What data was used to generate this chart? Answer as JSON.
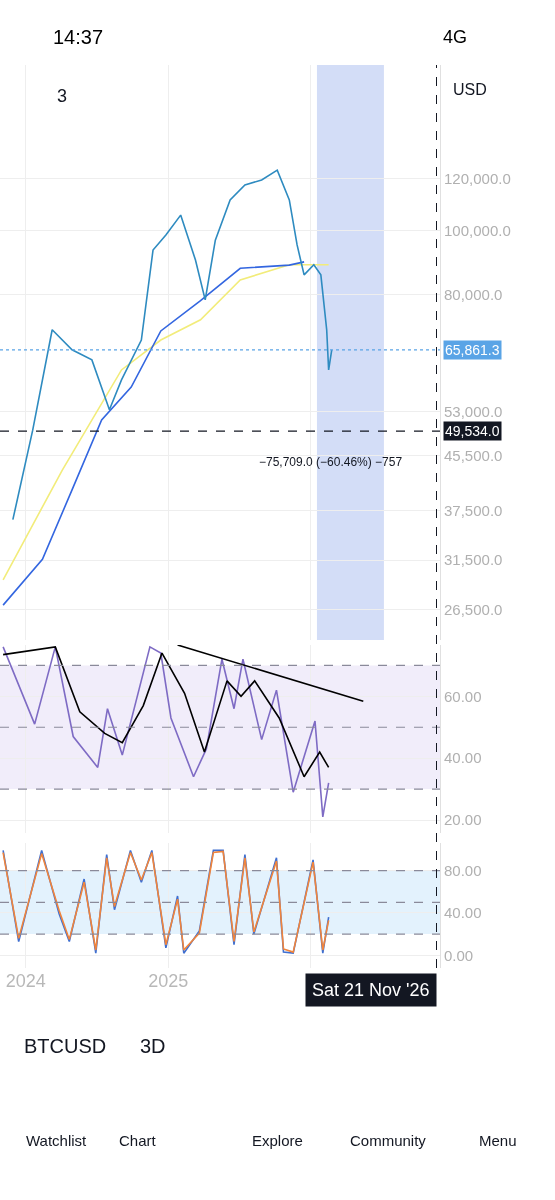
{
  "chart_data": [
    {
      "type": "line",
      "log": "y",
      "grid": true,
      "marker": "none",
      "tick_labels": "y",
      "xlim": [
        "2023-10-27",
        "2026-11-30"
      ],
      "xticks": [
        {
          "value": "2024-01-01",
          "label": null
        },
        {
          "value": "2025-01-01",
          "label": null
        },
        {
          "value": "2026-01-01",
          "label": null
        }
      ],
      "ylim": [
        23800,
        179000
      ],
      "yticks": [
        {
          "value": 26500,
          "label": "26,500.0"
        },
        {
          "value": 31500,
          "label": "31,500.0"
        },
        {
          "value": 37500,
          "label": "37,500.0"
        },
        {
          "value": 45500,
          "label": "45,500.0"
        },
        {
          "value": 53000,
          "label": "53,000.0"
        },
        {
          "value": 80000,
          "label": "80,000.0"
        },
        {
          "value": 100000,
          "label": "100,000.0"
        },
        {
          "value": 120000,
          "label": "120,000.0"
        }
      ],
      "series": [
        {
          "color": "#f2ec7a",
          "x": [
            "2023-11-04",
            "2024-04-04",
            "2024-09-03",
            "2024-12-13",
            "2025-03-25",
            "2025-07-05",
            "2025-11-08",
            "2026-02-17"
          ],
          "values": [
            29400,
            43200,
            61400,
            68200,
            73200,
            84200,
            88800,
            88800
          ]
        },
        {
          "color": "#3366e0",
          "x": [
            "2023-11-04",
            "2024-02-13",
            "2024-04-29",
            "2024-07-14",
            "2024-09-28",
            "2024-12-13",
            "2025-03-25",
            "2025-07-05",
            "2025-11-08",
            "2025-12-16"
          ],
          "values": [
            26900,
            31600,
            40300,
            51500,
            57800,
            70400,
            78300,
            87700,
            88700,
            89700
          ]
        },
        {
          "color": "#2e8bc0",
          "x": [
            "2023-11-29",
            "2024-01-19",
            "2024-03-09",
            "2024-04-29",
            "2024-06-19",
            "2024-08-03",
            "2024-09-03",
            "2024-10-24",
            "2024-11-23",
            "2024-12-26",
            "2025-02-02",
            "2025-03-12",
            "2025-04-06",
            "2025-05-02",
            "2025-06-09",
            "2025-07-17",
            "2025-08-29",
            "2025-10-08",
            "2025-11-08",
            "2025-11-28",
            "2025-12-16",
            "2026-01-10",
            "2026-01-28",
            "2026-02-12",
            "2026-02-17",
            "2026-02-25"
          ],
          "values": [
            36300,
            49700,
            70700,
            65900,
            63600,
            53400,
            59300,
            68200,
            93500,
            98600,
            105700,
            90300,
            78500,
            96800,
            111500,
            117500,
            119600,
            123800,
            111500,
            95200,
            85700,
            88800,
            85700,
            70700,
            61400,
            65861.3
          ]
        }
      ],
      "ref_lines": [
        {
          "axis": "y",
          "value": 65861.3,
          "label": "65,861.3",
          "color": "#5aa4e6",
          "line_style": "dotted"
        },
        {
          "axis": "y",
          "value": 49534,
          "label": "49,534.0",
          "color": "#131722",
          "line_style": "dashed"
        }
      ],
      "bands": [
        {
          "axis": "x",
          "from": "2026-01-18",
          "to": "2026-07-09",
          "color": "#d3ddf7"
        }
      ],
      "annotations": [
        "−75,709.0 (−60.46%) −757",
        "14:37",
        "4G",
        "3",
        "USD",
        "BTCUSD",
        "3D",
        "Watchlist",
        "Chart",
        "Explore",
        "Community",
        "Menu"
      ]
    },
    {
      "type": "line",
      "grid": true,
      "marker": "none",
      "tick_labels": "y",
      "xlim": [
        "2023-10-27",
        "2026-11-30"
      ],
      "xticks": [
        {
          "value": "2024-01-01",
          "label": null
        },
        {
          "value": "2025-01-01",
          "label": null
        },
        {
          "value": "2026-01-01",
          "label": null
        }
      ],
      "ylim": [
        15.8,
        76.6
      ],
      "yticks": [
        {
          "value": 20,
          "label": "20.00"
        },
        {
          "value": 40,
          "label": "40.00"
        },
        {
          "value": 60,
          "label": "60.00"
        }
      ],
      "series": [
        {
          "color": "#7e6bc4",
          "x": [
            "2023-11-04",
            "2024-01-24",
            "2024-03-17",
            "2024-05-02",
            "2024-07-04",
            "2024-07-29",
            "2024-09-05",
            "2024-11-15",
            "2024-12-13",
            "2025-01-08",
            "2025-03-07",
            "2025-04-09",
            "2025-05-19",
            "2025-06-19",
            "2025-07-12",
            "2025-08-29",
            "2025-10-06",
            "2025-11-18",
            "2026-01-13",
            "2026-02-02",
            "2026-02-17"
          ],
          "values": [
            76,
            51,
            76,
            47,
            37,
            56,
            41,
            76,
            74,
            53,
            34,
            43,
            72,
            56,
            72,
            46,
            62,
            29,
            52,
            21,
            32
          ]
        },
        {
          "color": "#000000",
          "x": [
            "2023-11-04",
            "2024-03-17",
            "2024-05-19",
            "2024-07-22",
            "2024-09-05",
            "2024-10-29",
            "2024-12-16",
            "2025-02-12",
            "2025-04-04",
            "2025-06-01",
            "2025-07-07",
            "2025-08-11",
            "2025-10-13",
            "2025-12-16",
            "2026-01-25",
            "2026-02-17"
          ],
          "values": [
            73.5,
            76,
            55,
            48,
            45,
            57,
            74,
            61,
            42,
            65,
            60,
            65,
            53,
            34,
            42,
            37
          ]
        },
        {
          "color": "#000000",
          "x": [
            "2025-01-25",
            "2026-05-17"
          ],
          "values": [
            76.6,
            58.4
          ]
        }
      ],
      "ref_lines": [
        {
          "axis": "y",
          "value": 70,
          "color": "#8a8a9a",
          "line_style": "dashed"
        },
        {
          "axis": "y",
          "value": 50,
          "color": "#8a8a9a",
          "line_style": "dashed"
        },
        {
          "axis": "y",
          "value": 30,
          "color": "#8a8a9a",
          "line_style": "dashed"
        }
      ],
      "bands": [
        {
          "axis": "y",
          "from": 30,
          "to": 70,
          "color": "#f1edfa"
        }
      ]
    },
    {
      "type": "line",
      "grid": true,
      "marker": "none",
      "xlim": [
        "2023-10-27",
        "2026-11-30"
      ],
      "xticks": [
        {
          "value": "2024-01-01",
          "label": "2024"
        },
        {
          "value": "2025-01-01",
          "label": "2025"
        },
        {
          "value": "2026-01-01",
          "label": null
        }
      ],
      "ylim": [
        -12,
        106
      ],
      "yticks": [
        {
          "value": 0,
          "label": "0.00"
        },
        {
          "value": 40,
          "label": "40.00"
        },
        {
          "value": 80,
          "label": "80.00"
        }
      ],
      "series": [
        {
          "color": "#3f6fd0",
          "x": [
            "2023-11-04",
            "2023-12-14",
            "2024-02-11",
            "2024-03-27",
            "2024-04-22",
            "2024-05-30",
            "2024-06-29",
            "2024-07-27",
            "2024-08-16",
            "2024-09-26",
            "2024-10-24",
            "2024-11-20",
            "2024-12-26",
            "2025-01-25",
            "2025-02-10",
            "2025-03-22",
            "2025-04-27",
            "2025-05-22",
            "2025-06-19",
            "2025-07-17",
            "2025-08-09",
            "2025-10-06",
            "2025-10-24",
            "2025-11-18",
            "2026-01-08",
            "2026-02-02",
            "2026-02-17"
          ],
          "values": [
            99,
            13,
            99,
            39,
            13,
            72,
            2,
            95,
            43,
            99,
            69,
            99,
            7,
            56,
            2,
            23,
            99,
            99,
            10,
            95,
            20,
            92,
            3,
            2,
            90,
            2,
            36
          ]
        },
        {
          "color": "#f0843c",
          "x": [
            "2023-11-04",
            "2023-12-14",
            "2024-02-11",
            "2024-03-27",
            "2024-04-22",
            "2024-05-30",
            "2024-06-29",
            "2024-07-27",
            "2024-08-16",
            "2024-09-26",
            "2024-10-24",
            "2024-11-20",
            "2024-12-26",
            "2025-01-25",
            "2025-02-10",
            "2025-03-22",
            "2025-04-27",
            "2025-05-22",
            "2025-06-19",
            "2025-07-17",
            "2025-08-09",
            "2025-10-06",
            "2025-10-24",
            "2025-11-18",
            "2026-01-08",
            "2026-02-02",
            "2026-02-17"
          ],
          "values": [
            97,
            16,
            96,
            42,
            15,
            69,
            5,
            92,
            46,
            97,
            71,
            97,
            10,
            53,
            5,
            21,
            97,
            98,
            13,
            92,
            22,
            89,
            6,
            3,
            88,
            5,
            33
          ]
        }
      ],
      "ref_lines": [
        {
          "axis": "y",
          "value": 80,
          "color": "#8a8a9a",
          "line_style": "dashed"
        },
        {
          "axis": "y",
          "value": 50,
          "color": "#8a8a9a",
          "line_style": "dashed"
        },
        {
          "axis": "y",
          "value": 20,
          "color": "#8a8a9a",
          "line_style": "dashed"
        },
        {
          "axis": "x",
          "value": "2026-11-21",
          "label": "Sat 21 Nov '26",
          "color": "#131722",
          "line_style": "dashed"
        }
      ],
      "bands": [
        {
          "axis": "y",
          "from": 20,
          "to": 80,
          "color": "#e3f2fd"
        }
      ]
    }
  ]
}
